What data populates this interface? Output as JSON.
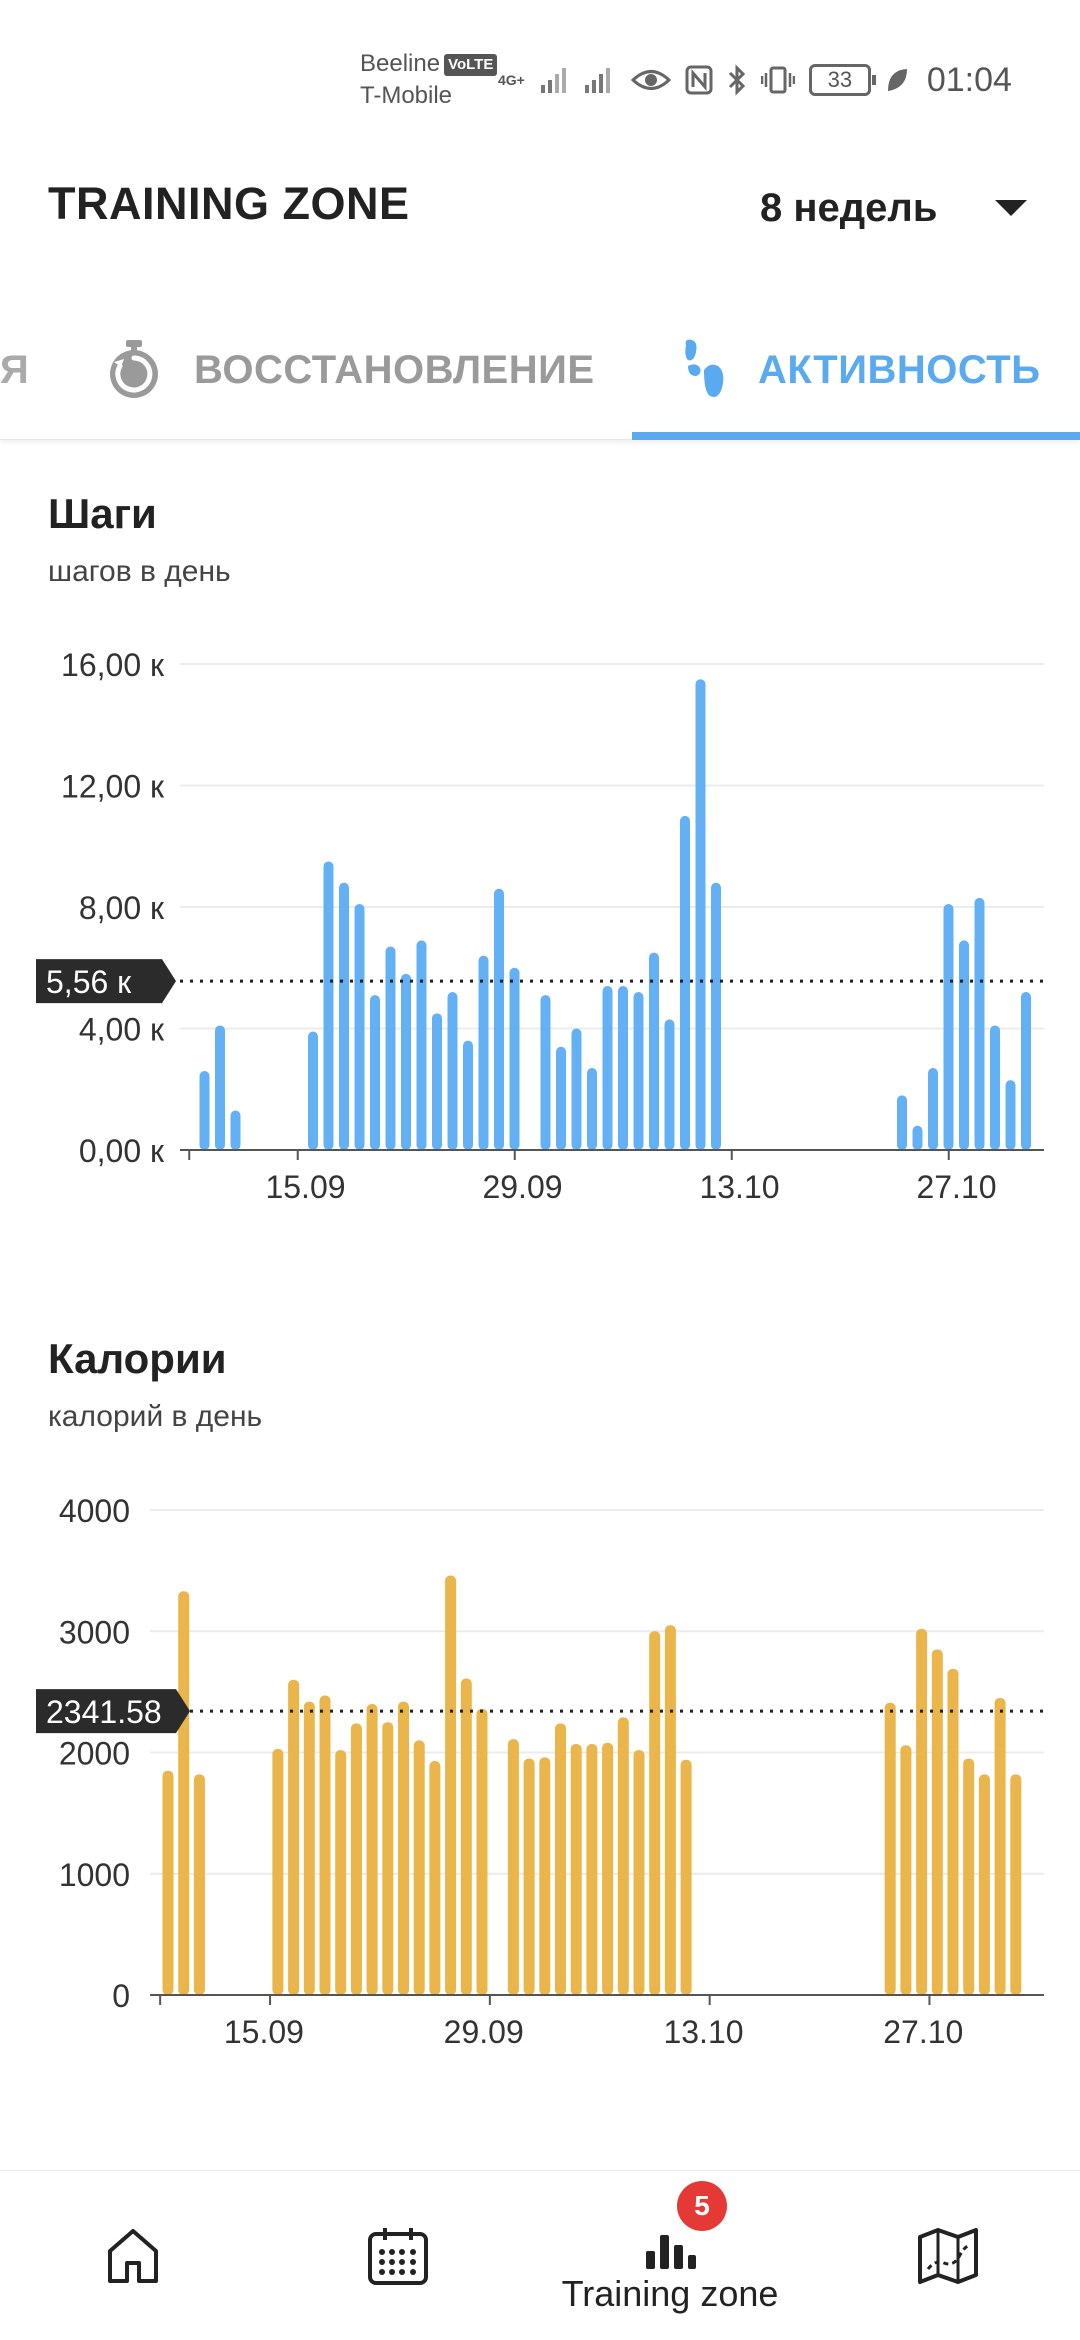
{
  "status_bar": {
    "carrier_1": "Beeline",
    "volte": "VoLTE",
    "carrier_2": "T-Mobile",
    "network": "4G+",
    "battery": "33",
    "time": "01:04"
  },
  "header": {
    "title": "TRAINING ZONE",
    "period": "8 недель"
  },
  "tabs": [
    {
      "label": "Я",
      "icon": "partial-tab",
      "active": false
    },
    {
      "label": "ВОССТАНОВЛЕНИЕ",
      "icon": "stopwatch-icon",
      "active": false
    },
    {
      "label": "АКТИВНОСТЬ",
      "icon": "footsteps-icon",
      "active": true
    }
  ],
  "colors": {
    "accent": "#5aaaf0",
    "steps_bar": "#64b0f4",
    "calories_bar": "#eab54a",
    "label_bg": "#2b2b2b"
  },
  "steps": {
    "title": "Шаги",
    "subtitle": "шагов в день"
  },
  "calories": {
    "title": "Калории",
    "subtitle": "калорий в день"
  },
  "chart_data": [
    {
      "type": "bar",
      "ylim": [
        0,
        16000
      ],
      "yticks": [
        0,
        4000,
        8000,
        12000,
        16000
      ],
      "ytick_labels": [
        "0,00 к",
        "4,00 к",
        "8,00 к",
        "12,00 к",
        "16,00 к"
      ],
      "xtick_labels": [
        "15.09",
        "29.09",
        "13.10",
        "27.10"
      ],
      "xtick_days": [
        7,
        21,
        35,
        49
      ],
      "grid": true,
      "average": 5560,
      "average_label": "5,56 к",
      "x_days": [
        0,
        1,
        2,
        3,
        4,
        5,
        6,
        7,
        8,
        9,
        10,
        11,
        12,
        13,
        14,
        15,
        16,
        17,
        18,
        19,
        20,
        21,
        22,
        23,
        24,
        25,
        26,
        27,
        28,
        29,
        30,
        31,
        32,
        33,
        34,
        35,
        36,
        37,
        38,
        39,
        40,
        41,
        42,
        43,
        44,
        45,
        46,
        47,
        48,
        49,
        50,
        51,
        52,
        53,
        54,
        55
      ],
      "values": [
        0,
        2600,
        4100,
        1300,
        0,
        0,
        0,
        0,
        3900,
        9500,
        8800,
        8100,
        5100,
        6700,
        5800,
        6900,
        4500,
        5200,
        3600,
        6400,
        8600,
        6000,
        0,
        5100,
        3400,
        4000,
        2700,
        5400,
        5400,
        5200,
        6500,
        4300,
        11000,
        15500,
        8800,
        0,
        0,
        0,
        0,
        0,
        0,
        0,
        0,
        0,
        0,
        0,
        1800,
        800,
        2700,
        8100,
        6900,
        8300,
        4100,
        2300,
        5200,
        0
      ]
    },
    {
      "type": "bar",
      "ylim": [
        0,
        4000
      ],
      "yticks": [
        0,
        1000,
        2000,
        3000,
        4000
      ],
      "ytick_labels": [
        "0",
        "1000",
        "2000",
        "3000",
        "4000"
      ],
      "xtick_labels": [
        "15.09",
        "29.09",
        "13.10",
        "27.10"
      ],
      "xtick_days": [
        7,
        21,
        35,
        49
      ],
      "grid": true,
      "average": 2341.58,
      "average_label": "2341.58",
      "x_days": [
        0,
        1,
        2,
        3,
        4,
        5,
        6,
        7,
        8,
        9,
        10,
        11,
        12,
        13,
        14,
        15,
        16,
        17,
        18,
        19,
        20,
        21,
        22,
        23,
        24,
        25,
        26,
        27,
        28,
        29,
        30,
        31,
        32,
        33,
        34,
        35,
        36,
        37,
        38,
        39,
        40,
        41,
        42,
        43,
        44,
        45,
        46,
        47,
        48,
        49,
        50,
        51,
        52,
        53,
        54,
        55
      ],
      "values": [
        1850,
        3330,
        1820,
        0,
        0,
        0,
        0,
        2030,
        2600,
        2420,
        2470,
        2020,
        2240,
        2400,
        2250,
        2420,
        2100,
        1930,
        3460,
        2610,
        2360,
        0,
        2110,
        1950,
        1960,
        2240,
        2070,
        2070,
        2080,
        2290,
        2020,
        3000,
        3050,
        1940,
        0,
        0,
        0,
        0,
        0,
        0,
        0,
        0,
        0,
        0,
        0,
        0,
        2410,
        2060,
        3020,
        2850,
        2690,
        1950,
        1820,
        2450,
        1820,
        0
      ]
    }
  ],
  "bottom_nav": {
    "items": [
      {
        "name": "home",
        "icon": "home-icon",
        "label": ""
      },
      {
        "name": "calendar",
        "icon": "calendar-icon",
        "label": ""
      },
      {
        "name": "training-zone",
        "icon": "bar-chart-icon",
        "label": "Training zone",
        "badge": "5"
      },
      {
        "name": "map",
        "icon": "map-icon",
        "label": ""
      }
    ]
  }
}
